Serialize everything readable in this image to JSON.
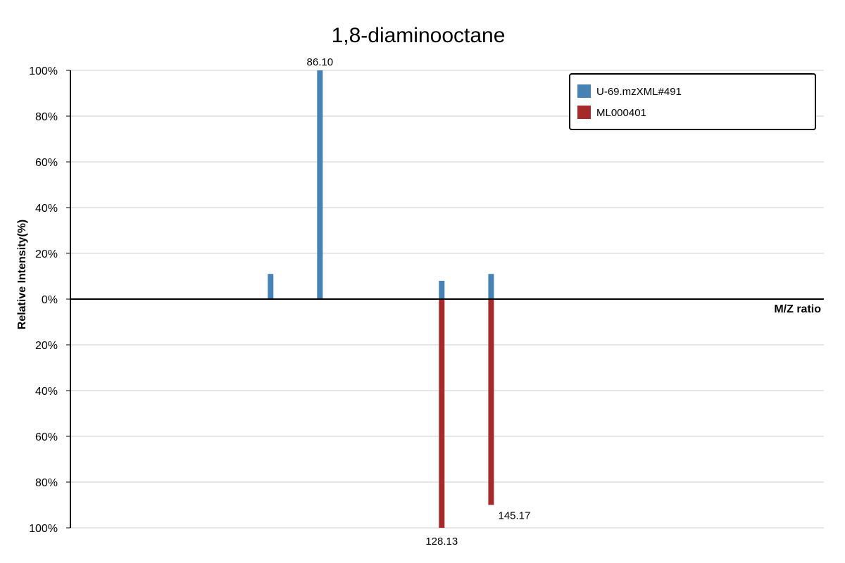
{
  "chart_data": {
    "type": "bar",
    "title": "1,8-diaminooctane",
    "xlabel": "M/Z ratio",
    "ylabel": "Relative Intensity(%)",
    "ylim_top": [
      0,
      100
    ],
    "ylim_bottom": [
      0,
      100
    ],
    "y_ticks_top": [
      "100%",
      "80%",
      "60%",
      "40%",
      "20%",
      "0%"
    ],
    "y_ticks_bottom": [
      "20%",
      "40%",
      "60%",
      "80%",
      "100%"
    ],
    "grid": true,
    "legend_position": "top-right",
    "series": [
      {
        "name": "U-69.mzXML#491",
        "color": "#4682b4",
        "direction": "up",
        "peaks": [
          {
            "mz": 69.07,
            "intensity": 11
          },
          {
            "mz": 86.1,
            "intensity": 100,
            "label": "86.10"
          },
          {
            "mz": 128.13,
            "intensity": 8
          },
          {
            "mz": 145.17,
            "intensity": 11
          }
        ]
      },
      {
        "name": "ML000401",
        "color": "#a52a2a",
        "direction": "down",
        "peaks": [
          {
            "mz": 128.13,
            "intensity": 100,
            "label": "128.13"
          },
          {
            "mz": 145.17,
            "intensity": 90,
            "label": "145.17"
          }
        ]
      }
    ]
  }
}
